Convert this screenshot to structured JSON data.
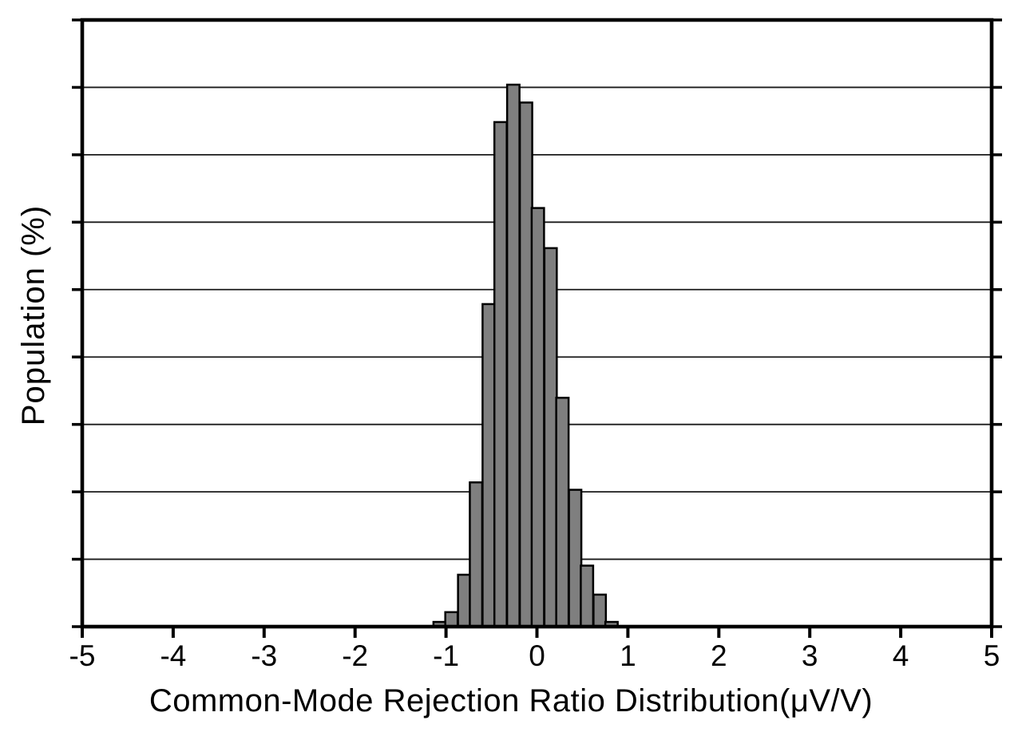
{
  "figure": {
    "background": "#ffffff"
  },
  "chart_data": {
    "type": "bar",
    "subtype": "histogram",
    "title": "",
    "xlabel": "Common-Mode Rejection Ratio Distribution(μV/V)",
    "ylabel": "Population (%)",
    "xlim": [
      -5,
      5
    ],
    "ylim": [
      0,
      18
    ],
    "grid_step": 2,
    "grid": "horizontal",
    "legend": "none",
    "y_tick_labels": [],
    "x_ticks": [
      -5,
      -4,
      -3,
      -2,
      -1,
      0,
      1,
      2,
      3,
      4,
      5
    ],
    "x_tick_labels": [
      "-5",
      "-4",
      "-3",
      "-2",
      "-1",
      "0",
      "1",
      "2",
      "3",
      "4",
      "5"
    ],
    "bin_width": 0.136,
    "bin_centers": [
      -1.07,
      -0.94,
      -0.8,
      -0.67,
      -0.53,
      -0.4,
      -0.26,
      -0.12,
      0.01,
      0.15,
      0.28,
      0.42,
      0.55,
      0.69,
      0.82
    ],
    "values_percent": [
      0.14,
      0.43,
      1.54,
      4.28,
      9.57,
      14.97,
      16.08,
      15.55,
      12.42,
      11.23,
      6.79,
      4.06,
      1.81,
      0.95,
      0.14
    ],
    "bar_fill": "#7f7f7f",
    "bar_stroke": "#000000",
    "axis_color": "#000000",
    "gridline_color": "#1a1a1a"
  }
}
